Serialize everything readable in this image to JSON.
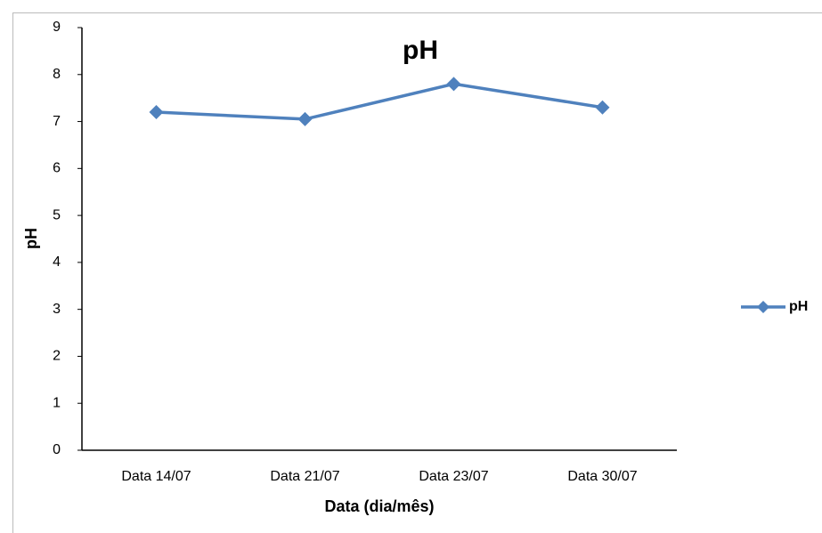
{
  "chart_data": {
    "type": "line",
    "title": "pH",
    "x_label": "Data (dia/mês)",
    "y_label": "pH",
    "categories": [
      "Data 14/07",
      "Data 21/07",
      "Data 23/07",
      "Data 30/07"
    ],
    "series": [
      {
        "name": "pH",
        "color": "#4f81bd",
        "values": [
          7.2,
          7.05,
          7.8,
          7.3
        ]
      }
    ],
    "ylim": [
      0,
      9
    ],
    "yticks": [
      0,
      1,
      2,
      3,
      4,
      5,
      6,
      7,
      8,
      9
    ],
    "grid": false,
    "legend": "right"
  }
}
